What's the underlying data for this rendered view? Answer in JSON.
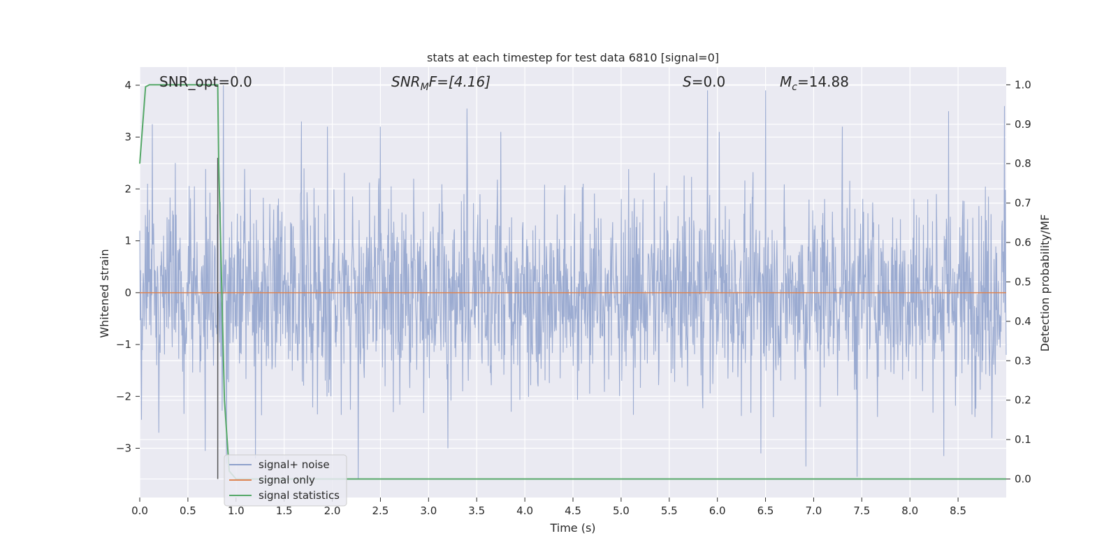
{
  "chart_data": {
    "type": "line",
    "title": "stats at each timestep for test data 6810 [signal=0]",
    "xlabel": "Time (s)",
    "ylabel_left": "Whitened strain",
    "ylabel_right": "Detection probability/MF",
    "xlim": [
      0.0,
      9.0
    ],
    "ylim_left": [
      -3.95,
      4.35
    ],
    "ylim_right": [
      -0.047,
      1.045
    ],
    "x_ticks": [
      "0.0",
      "0.5",
      "1.0",
      "1.5",
      "2.0",
      "2.5",
      "3.0",
      "3.5",
      "4.0",
      "4.5",
      "5.0",
      "5.5",
      "6.0",
      "6.5",
      "7.0",
      "7.5",
      "8.0",
      "8.5"
    ],
    "y_ticks_left": [
      "4",
      "3",
      "2",
      "1",
      "0",
      "−1",
      "−2",
      "−3"
    ],
    "y_ticks_right": [
      "1.0",
      "0.9",
      "0.8",
      "0.7",
      "0.6",
      "0.5",
      "0.4",
      "0.3",
      "0.2",
      "0.1",
      "0.0"
    ],
    "annotations": {
      "snr_opt": "SNR_opt=0.0",
      "snr_mf_main": "SNR",
      "snr_mf_sub": "M",
      "snr_mf_rest": "F=[4.16]",
      "s_main": "S",
      "s_rest": "=0.0",
      "mc_main": "M",
      "mc_sub": "c",
      "mc_rest": "=14.88"
    },
    "vertical_marker_x": 0.81,
    "grid": true,
    "legend": {
      "placement": "lower-left"
    },
    "series": [
      {
        "name": "signal+ noise",
        "axis": "left",
        "color": "#8da0cb",
        "description": "whitened noise, roughly within ±2.5, peaks near ±4",
        "peaks": [
          {
            "x": 0.08,
            "y": 2.1
          },
          {
            "x": 0.13,
            "y": 3.25
          },
          {
            "x": 0.37,
            "y": 2.5
          },
          {
            "x": 0.87,
            "y": 4.0
          },
          {
            "x": 1.15,
            "y": 2.0
          },
          {
            "x": 1.68,
            "y": 3.3
          },
          {
            "x": 1.95,
            "y": 3.2
          },
          {
            "x": 2.5,
            "y": 3.2
          },
          {
            "x": 3.4,
            "y": 3.55
          },
          {
            "x": 3.75,
            "y": 3.1
          },
          {
            "x": 5.9,
            "y": 3.9
          },
          {
            "x": 6.02,
            "y": 3.1
          },
          {
            "x": 6.5,
            "y": 3.9
          },
          {
            "x": 7.3,
            "y": 3.2
          },
          {
            "x": 8.4,
            "y": 3.5
          },
          {
            "x": 8.98,
            "y": 3.6
          }
        ],
        "troughs": [
          {
            "x": 0.02,
            "y": -2.45
          },
          {
            "x": 0.2,
            "y": -2.7
          },
          {
            "x": 0.68,
            "y": -3.05
          },
          {
            "x": 0.9,
            "y": -3.3
          },
          {
            "x": 1.2,
            "y": -3.2
          },
          {
            "x": 2.27,
            "y": -3.6
          },
          {
            "x": 3.2,
            "y": -3.0
          },
          {
            "x": 6.45,
            "y": -3.1
          },
          {
            "x": 6.92,
            "y": -3.35
          },
          {
            "x": 7.45,
            "y": -3.55
          },
          {
            "x": 8.35,
            "y": -3.15
          },
          {
            "x": 8.85,
            "y": -2.8
          }
        ]
      },
      {
        "name": "signal only",
        "axis": "left",
        "color": "#dd8452",
        "x": [
          0.0,
          9.0
        ],
        "y": [
          0.0,
          0.0
        ]
      },
      {
        "name": "signal statistics",
        "axis": "right",
        "color": "#55a868",
        "x": [
          0.0,
          0.06,
          0.1,
          0.2,
          0.5,
          0.81,
          0.82,
          0.85,
          0.88,
          0.93,
          1.0,
          2.0,
          9.0
        ],
        "y": [
          0.8,
          0.995,
          1.0,
          1.0,
          1.0,
          1.0,
          0.8,
          0.5,
          0.2,
          0.02,
          0.0,
          0.0,
          0.0
        ]
      }
    ]
  }
}
